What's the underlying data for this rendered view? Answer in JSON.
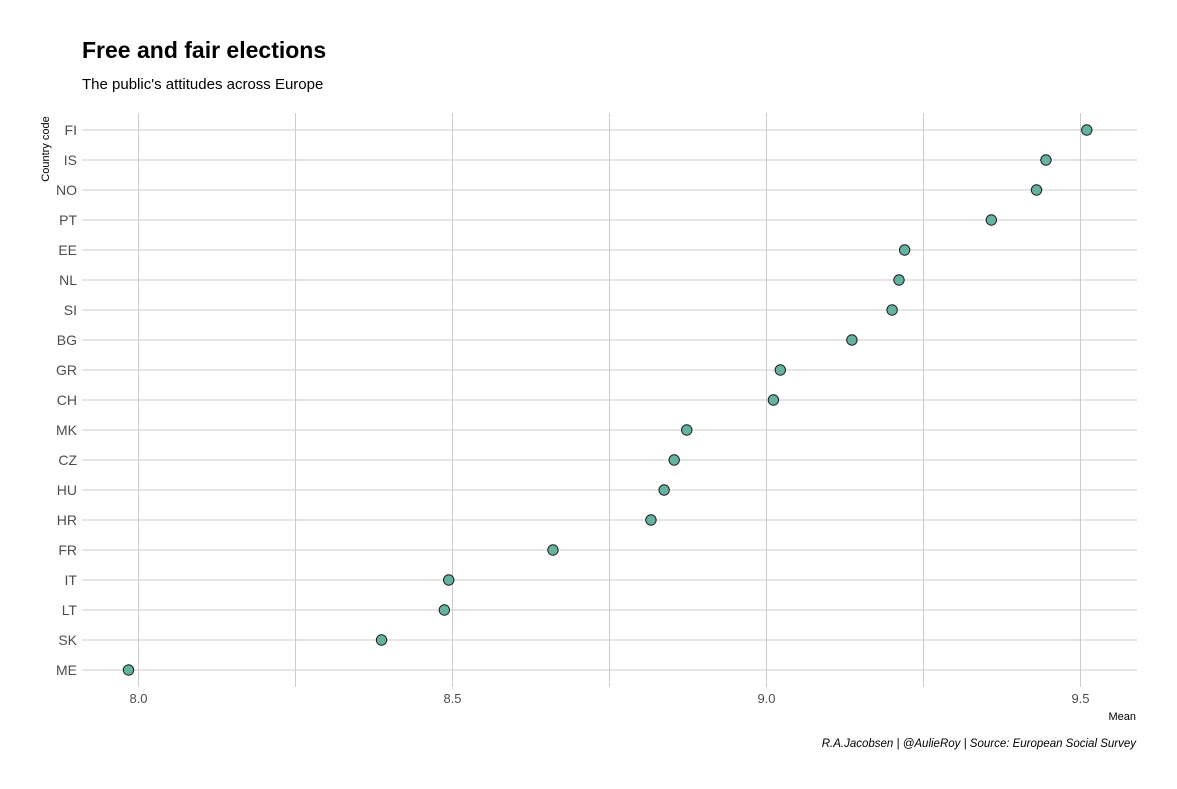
{
  "chart_data": {
    "type": "scatter",
    "title": "Free and fair elections",
    "subtitle": "The public's attitudes across Europe",
    "xlabel": "Mean",
    "ylabel": "Country code",
    "caption": "R.A.Jacobsen | @AulieRoy | Source: European Social Survey",
    "xlim": [
      7.91,
      9.59
    ],
    "x_ticks": [
      8.0,
      8.5,
      9.0,
      9.5
    ],
    "x_tick_labels": [
      "8.0",
      "8.5",
      "9.0",
      "9.5"
    ],
    "grid": true,
    "point_color": "#66b2a0",
    "categories": [
      "FI",
      "IS",
      "NO",
      "PT",
      "EE",
      "NL",
      "SI",
      "BG",
      "GR",
      "CH",
      "MK",
      "CZ",
      "HU",
      "HR",
      "FR",
      "IT",
      "LT",
      "SK",
      "ME"
    ],
    "values": [
      9.51,
      9.445,
      9.43,
      9.358,
      9.22,
      9.211,
      9.2,
      9.136,
      9.022,
      9.011,
      8.873,
      8.853,
      8.837,
      8.816,
      8.66,
      8.494,
      8.487,
      8.387,
      7.984
    ]
  }
}
